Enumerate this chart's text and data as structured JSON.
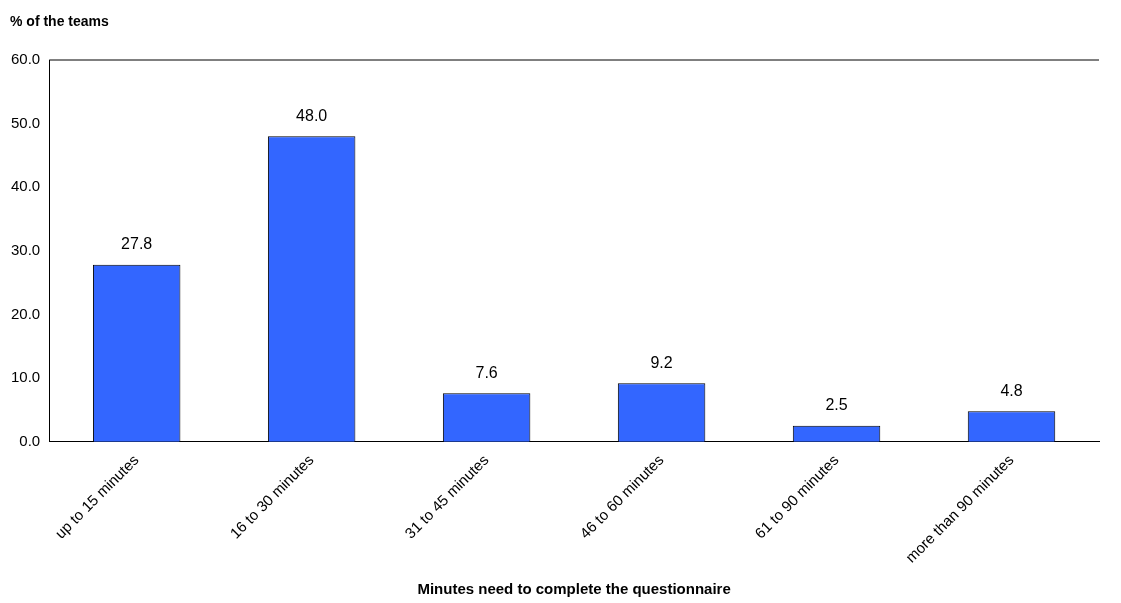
{
  "chart_data": {
    "type": "bar",
    "xlabel": "Minutes need to complete the questionnaire",
    "ylabel": "% of the teams",
    "categories": [
      "up to 15 minutes",
      "16 to 30 minutes",
      "31 to 45 minutes",
      "46 to 60 minutes",
      "61 to 90 minutes",
      "more than 90 minutes"
    ],
    "values": [
      27.8,
      48.0,
      7.6,
      9.2,
      2.5,
      4.8
    ],
    "value_labels": [
      "27.8",
      "48.0",
      "7.6",
      "9.2",
      "2.5",
      "4.8"
    ],
    "color": "#3366ff",
    "ylim": [
      0,
      60
    ],
    "yticks": [
      {
        "value": 0,
        "label": "0.0"
      },
      {
        "value": 10,
        "label": "10.0"
      },
      {
        "value": 20,
        "label": "20.0"
      },
      {
        "value": 30,
        "label": "30.0"
      },
      {
        "value": 40,
        "label": "40.0"
      },
      {
        "value": 50,
        "label": "50.0"
      },
      {
        "value": 60,
        "label": "60.0"
      }
    ],
    "grid": false,
    "legend": false
  }
}
